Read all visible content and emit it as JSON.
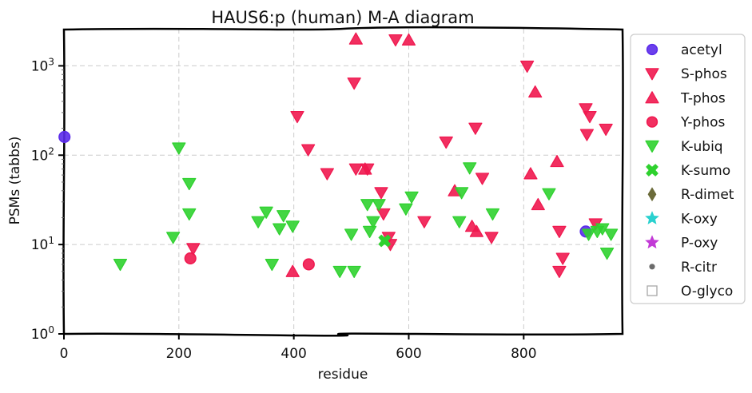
{
  "chart_data": {
    "type": "scatter",
    "title": "HAUS6:p (human) M-A diagram",
    "xlabel": "residue",
    "ylabel": "PSMs (tabbs)",
    "xlim": [
      0,
      972
    ],
    "ylim": [
      1,
      2600
    ],
    "yscale": "log",
    "grid": true,
    "legend_placement": "right, outside",
    "x_ticks": [
      "0",
      "200",
      "400",
      "600",
      "800"
    ],
    "y_ticks": [
      "10^0",
      "10^1",
      "10^2",
      "10^3"
    ],
    "series": [
      {
        "name": "acetyl",
        "marker": "circle",
        "color": "#5b2bea",
        "points": [
          [
            1,
            160
          ],
          [
            908,
            14
          ]
        ]
      },
      {
        "name": "S-phos",
        "marker": "triangle-down",
        "color": "#f0184f",
        "points": [
          [
            225,
            9
          ],
          [
            406,
            270
          ],
          [
            425,
            115
          ],
          [
            458,
            62
          ],
          [
            505,
            640
          ],
          [
            508,
            70
          ],
          [
            528,
            70
          ],
          [
            552,
            38
          ],
          [
            556,
            22
          ],
          [
            565,
            12
          ],
          [
            568,
            10
          ],
          [
            577,
            1950
          ],
          [
            627,
            18
          ],
          [
            665,
            140
          ],
          [
            716,
            200
          ],
          [
            728,
            55
          ],
          [
            744,
            12
          ],
          [
            806,
            990
          ],
          [
            862,
            14
          ],
          [
            868,
            7
          ],
          [
            862,
            5
          ],
          [
            908,
            330
          ],
          [
            910,
            170
          ],
          [
            915,
            270
          ],
          [
            925,
            17
          ],
          [
            943,
            195
          ]
        ]
      },
      {
        "name": "T-phos",
        "marker": "triangle-up",
        "color": "#f0184f",
        "points": [
          [
            398,
            5
          ],
          [
            508,
            2000
          ],
          [
            524,
            70
          ],
          [
            600,
            1950
          ],
          [
            680,
            40
          ],
          [
            710,
            16
          ],
          [
            718,
            14
          ],
          [
            812,
            62
          ],
          [
            820,
            510
          ],
          [
            825,
            28
          ],
          [
            858,
            85
          ]
        ]
      },
      {
        "name": "Y-phos",
        "marker": "circle",
        "color": "#f0184f",
        "points": [
          [
            220,
            7
          ],
          [
            426,
            6
          ]
        ]
      },
      {
        "name": "K-ubiq",
        "marker": "triangle-down",
        "color": "#2fd12f",
        "points": [
          [
            98,
            6
          ],
          [
            190,
            12
          ],
          [
            200,
            120
          ],
          [
            218,
            48
          ],
          [
            218,
            22
          ],
          [
            338,
            18
          ],
          [
            352,
            23
          ],
          [
            362,
            6
          ],
          [
            375,
            15
          ],
          [
            382,
            21
          ],
          [
            398,
            16
          ],
          [
            480,
            5
          ],
          [
            500,
            13
          ],
          [
            505,
            5
          ],
          [
            528,
            28
          ],
          [
            532,
            14
          ],
          [
            538,
            18
          ],
          [
            548,
            28
          ],
          [
            595,
            25
          ],
          [
            605,
            34
          ],
          [
            688,
            18
          ],
          [
            692,
            38
          ],
          [
            706,
            72
          ],
          [
            746,
            22
          ],
          [
            844,
            37
          ],
          [
            913,
            13
          ],
          [
            928,
            14
          ],
          [
            937,
            15
          ],
          [
            945,
            8
          ],
          [
            952,
            13
          ]
        ]
      },
      {
        "name": "K-sumo",
        "marker": "x",
        "color": "#2fd12f",
        "points": [
          [
            558,
            11
          ]
        ]
      },
      {
        "name": "R-dimet",
        "marker": "diamond",
        "color": "#6b6b3a",
        "points": []
      },
      {
        "name": "K-oxy",
        "marker": "star",
        "color": "#2ad1cf",
        "points": []
      },
      {
        "name": "P-oxy",
        "marker": "star",
        "color": "#c23ad6",
        "points": []
      },
      {
        "name": "R-citr",
        "marker": "dot",
        "color": "#6b6b6b",
        "points": []
      },
      {
        "name": "O-glyco",
        "marker": "square-open",
        "color": "#a8a8a8",
        "points": []
      }
    ]
  }
}
